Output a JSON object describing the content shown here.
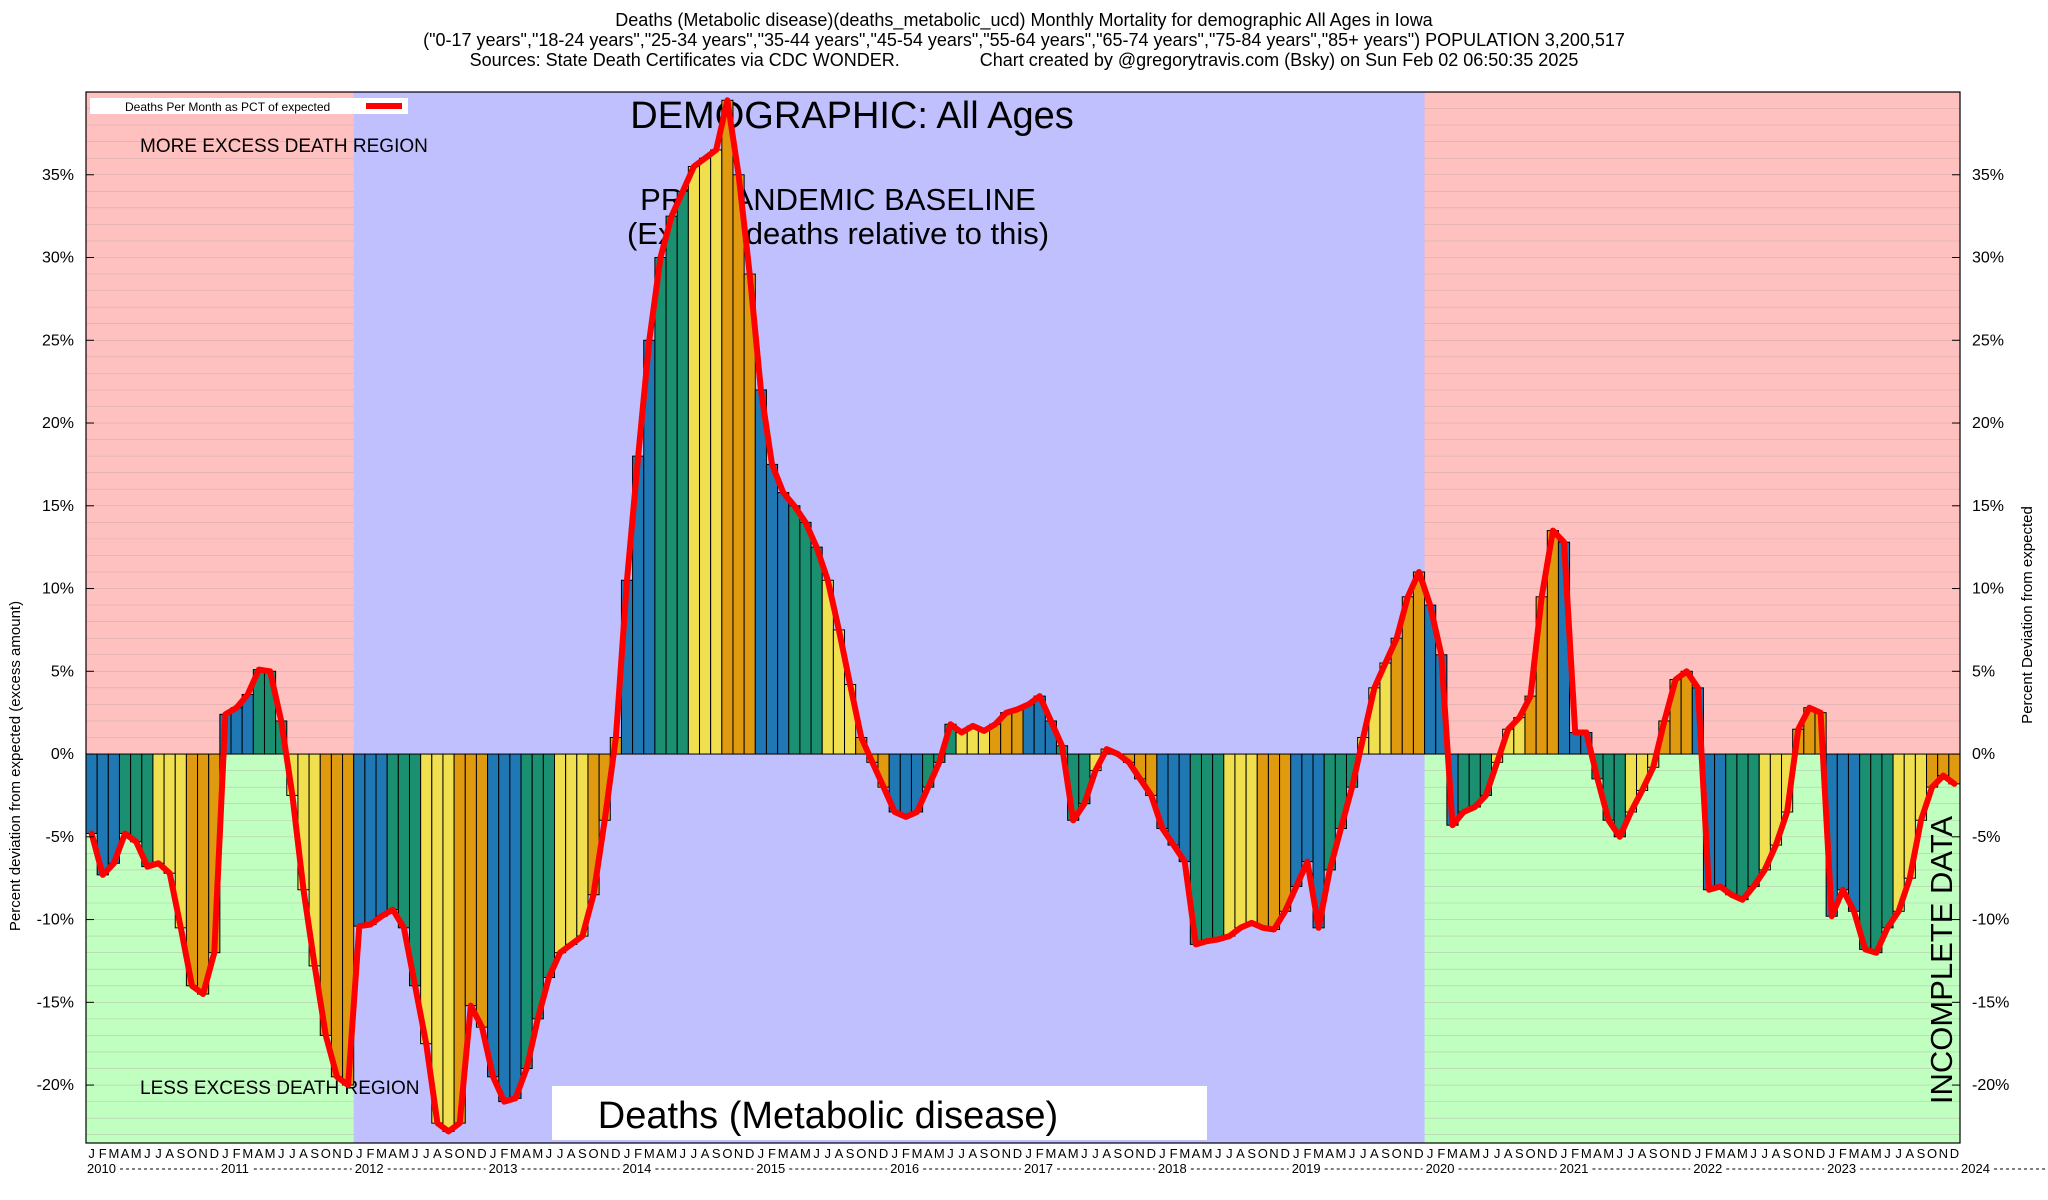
{
  "title": {
    "line1": "Deaths (Metabolic disease)(deaths_metabolic_ucd) Monthly Mortality for demographic All Ages in Iowa",
    "line2": "(\"0-17 years\",\"18-24 years\",\"25-34 years\",\"35-44 years\",\"45-54 years\",\"55-64 years\",\"65-74 years\",\"75-84 years\",\"85+ years\") POPULATION 3,200,517",
    "line3": "Sources: State Death Certificates via CDC WONDER.                Chart created by @gregorytravis.com (Bsky) on Sun Feb 02 06:50:35 2025"
  },
  "labels": {
    "demographic": "DEMOGRAPHIC: All Ages",
    "baseline_line1": "PRE-PANDEMIC BASELINE",
    "baseline_line2": "(Excess deaths relative to this)",
    "more_region": "MORE EXCESS DEATH REGION",
    "less_region": "LESS EXCESS DEATH REGION",
    "bottom_title": "Deaths (Metabolic disease)",
    "incomplete": "INCOMPLETE DATA",
    "legend": "Deaths Per Month as PCT of expected",
    "ylabel_left": "Percent deviation from expected (excess amount)",
    "ylabel_right": "Percent Deviation from expected"
  },
  "colors": {
    "more_region": "#ffc0c0",
    "less_region": "#c0ffc0",
    "baseline_region": "#c0c0ff",
    "line": "#ff0000",
    "bar_palette": [
      "#1f77b4",
      "#1a9070",
      "#f0e050",
      "#e09a10"
    ]
  },
  "chart_data": {
    "type": "bar",
    "subtype": "monthly bars with overlay line",
    "ylim": [
      -23.5,
      40
    ],
    "yticks": [
      -20,
      -15,
      -10,
      -5,
      0,
      5,
      10,
      15,
      20,
      25,
      30,
      35
    ],
    "ytick_format": "{v}%",
    "start_year": 2010,
    "years": [
      "2010",
      "2011",
      "2012",
      "2013",
      "2014",
      "2015",
      "2016",
      "2017",
      "2018",
      "2019",
      "2020",
      "2021",
      "2022",
      "2023",
      "2024"
    ],
    "month_letters": [
      "J",
      "F",
      "M",
      "A",
      "M",
      "J",
      "J",
      "A",
      "S",
      "O",
      "N",
      "D"
    ],
    "regions": [
      {
        "name": "pre-pandemic baseline",
        "start_year": 2012,
        "end_year": 2020
      },
      {
        "name": "incomplete data",
        "start_month_index": 171
      }
    ],
    "series": [
      {
        "name": "Deaths Per Month as PCT of expected",
        "values": [
          -4.8,
          -7.3,
          -6.6,
          -4.8,
          -5.3,
          -6.8,
          -6.6,
          -7.2,
          -10.5,
          -14.0,
          -14.5,
          -12.0,
          2.4,
          2.8,
          3.6,
          5.1,
          5.0,
          2.0,
          -2.5,
          -8.2,
          -12.8,
          -17.0,
          -19.5,
          -20.0,
          -10.4,
          -10.3,
          -9.8,
          -9.4,
          -10.5,
          -14.0,
          -17.5,
          -22.3,
          -22.8,
          -22.3,
          -15.2,
          -16.5,
          -19.5,
          -21.0,
          -20.8,
          -19.0,
          -16.0,
          -13.5,
          -12.0,
          -11.5,
          -11.0,
          -8.5,
          -4.0,
          1.0,
          10.5,
          18.0,
          25.0,
          30.0,
          32.5,
          34.0,
          35.5,
          36.0,
          36.5,
          39.5,
          35.0,
          29.0,
          22.0,
          17.5,
          15.8,
          15.0,
          14.0,
          12.5,
          10.5,
          7.5,
          4.2,
          1.0,
          -0.5,
          -2.0,
          -3.5,
          -3.8,
          -3.5,
          -2.0,
          -0.5,
          1.8,
          1.3,
          1.7,
          1.4,
          1.8,
          2.5,
          2.7,
          3.0,
          3.5,
          2.0,
          0.5,
          -4.0,
          -3.0,
          -1.0,
          0.3,
          0.0,
          -0.5,
          -1.5,
          -2.5,
          -4.5,
          -5.5,
          -6.5,
          -11.5,
          -11.3,
          -11.2,
          -11.0,
          -10.5,
          -10.2,
          -10.5,
          -10.6,
          -9.5,
          -8.0,
          -6.5,
          -10.5,
          -7.0,
          -4.5,
          -2.0,
          1.0,
          4.0,
          5.5,
          7.0,
          9.5,
          11.0,
          9.0,
          6.0,
          -4.3,
          -3.5,
          -3.2,
          -2.5,
          -0.5,
          1.5,
          2.2,
          3.5,
          9.5,
          13.5,
          12.8,
          1.3,
          1.3,
          -1.5,
          -4.0,
          -5.0,
          -3.5,
          -2.2,
          -0.8,
          2.0,
          4.5,
          5.0,
          4.0,
          -8.2,
          -8.0,
          -8.5,
          -8.8,
          -8.0,
          -7.0,
          -5.5,
          -3.5,
          1.5,
          2.8,
          2.5,
          -9.8,
          -8.2,
          -9.5,
          -11.8,
          -12.0,
          -10.5,
          -9.5,
          -7.5,
          -4.0,
          -2.0,
          -1.3,
          -1.8
        ]
      }
    ]
  }
}
